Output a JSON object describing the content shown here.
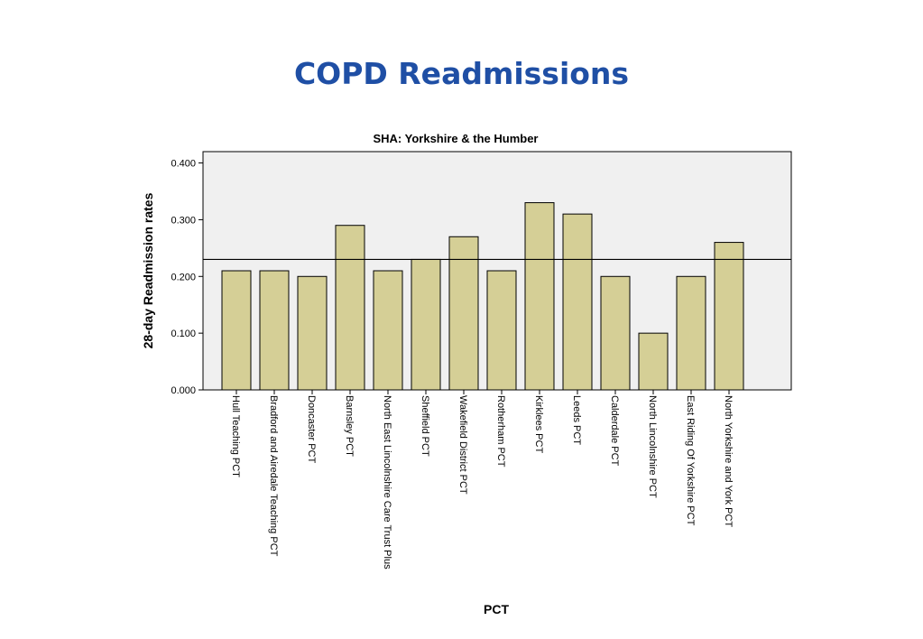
{
  "page": {
    "title": "COPD Readmissions"
  },
  "colors": {
    "bar_fill": "#d5cf96",
    "plot_background": "#f0f0f0",
    "title_color": "#1f4fa5"
  },
  "chart_data": {
    "type": "bar",
    "title": "SHA: Yorkshire & the Humber",
    "xlabel": "PCT",
    "ylabel": "28-day Readmission rates",
    "ylim": [
      0,
      0.42
    ],
    "yticks": [
      0,
      0.1,
      0.2,
      0.3,
      0.4
    ],
    "ytick_labels": [
      "0.000",
      "0.100",
      "0.200",
      "0.300",
      "0.400"
    ],
    "reference_line": 0.23,
    "grid": false,
    "categories": [
      "Hull Teaching PCT",
      "Bradford and Airedale Teaching PCT",
      "Doncaster PCT",
      "Barnsley PCT",
      "North East Lincolnshire Care Trust Plus",
      "Sheffield PCT",
      "Wakefield District PCT",
      "Rotherham PCT",
      "Kirklees PCT",
      "Leeds PCT",
      "Calderdale PCT",
      "North Lincolnshire PCT",
      "East Riding Of Yorkshire PCT",
      "North Yorkshire and York PCT"
    ],
    "values": [
      0.21,
      0.21,
      0.2,
      0.29,
      0.21,
      0.23,
      0.27,
      0.21,
      0.33,
      0.31,
      0.2,
      0.1,
      0.2,
      0.26
    ]
  }
}
